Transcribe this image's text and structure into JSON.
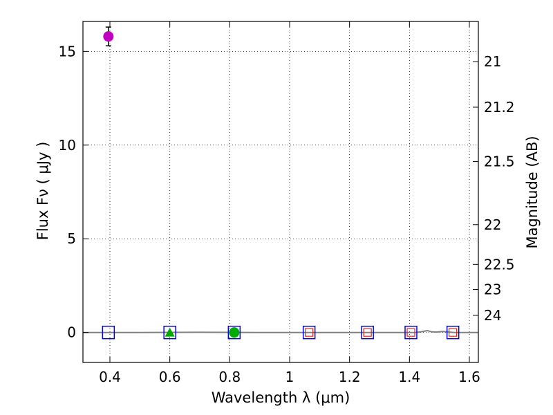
{
  "chart_data": {
    "type": "scatter",
    "xlabel": "Wavelength  λ (μm)",
    "ylabel": "Flux  Fν  ( μJy )",
    "y2label": "Magnitude (AB)",
    "xlim": [
      0.31,
      1.63
    ],
    "ylim": [
      -1.6,
      16.6
    ],
    "grid": true,
    "x_ticks": [
      {
        "value": 0.4,
        "label": "0.4"
      },
      {
        "value": 0.6,
        "label": "0.6"
      },
      {
        "value": 0.8,
        "label": "0.8"
      },
      {
        "value": 1.0,
        "label": "1"
      },
      {
        "value": 1.2,
        "label": "1.2"
      },
      {
        "value": 1.4,
        "label": "1.4"
      },
      {
        "value": 1.6,
        "label": "1.6"
      }
    ],
    "y_ticks": [
      {
        "value": 0,
        "label": "0"
      },
      {
        "value": 5,
        "label": "5"
      },
      {
        "value": 10,
        "label": "10"
      },
      {
        "value": 15,
        "label": "15"
      }
    ],
    "magnitude_ticks": [
      {
        "value": 21,
        "label": "21"
      },
      {
        "value": 21.2,
        "label": "21.2"
      },
      {
        "value": 21.5,
        "label": "21.5"
      },
      {
        "value": 22,
        "label": "22"
      },
      {
        "value": 22.5,
        "label": "22.5"
      },
      {
        "value": 23,
        "label": "23"
      },
      {
        "value": 24,
        "label": "24"
      }
    ],
    "series": [
      {
        "name": "circle-magenta",
        "marker": "circle",
        "color": "#bf00bf",
        "x": [
          0.395
        ],
        "y": [
          15.8
        ],
        "yerr": [
          0.5
        ]
      },
      {
        "name": "triangle-green",
        "marker": "triangle",
        "color": "#00aa00",
        "x": [
          0.6
        ],
        "y": [
          0.0
        ]
      },
      {
        "name": "circle-green",
        "marker": "circle",
        "color": "#00aa00",
        "x": [
          0.815
        ],
        "y": [
          0.0
        ]
      },
      {
        "name": "square-red-small",
        "marker": "square-small",
        "color": "#dd2222",
        "x": [
          1.065,
          1.26,
          1.405,
          1.545
        ],
        "y": [
          0.0,
          0.0,
          0.0,
          0.0
        ]
      },
      {
        "name": "square-blue-open",
        "marker": "square-large",
        "color": "#0000ee",
        "x": [
          0.395,
          0.6,
          0.815,
          1.065,
          1.26,
          1.405,
          1.545
        ],
        "y": [
          0.0,
          0.0,
          0.0,
          0.0,
          0.0,
          0.0,
          0.0
        ]
      }
    ],
    "model_line": {
      "color": "#808080",
      "x": [
        0.31,
        0.5,
        0.7,
        0.9,
        1.1,
        1.3,
        1.42,
        1.44,
        1.46,
        1.475,
        1.49,
        1.51,
        1.55,
        1.63
      ],
      "y": [
        0.0,
        0.0,
        0.01,
        0.0,
        0.0,
        0.0,
        0.0,
        0.04,
        0.1,
        0.03,
        0.02,
        0.05,
        0.0,
        0.0
      ]
    }
  }
}
